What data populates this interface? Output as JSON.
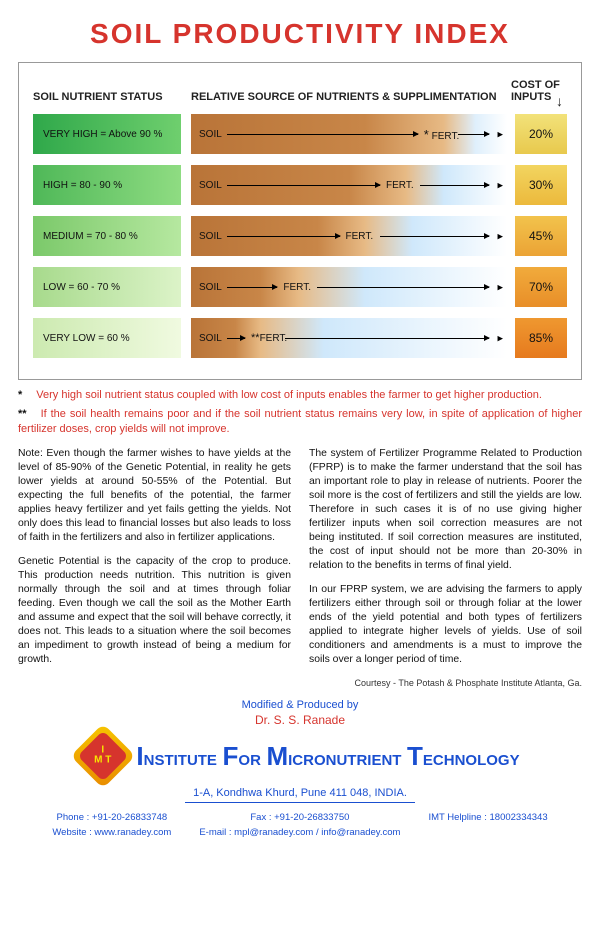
{
  "title": "SOIL PRODUCTIVITY INDEX",
  "headers": {
    "status": "SOIL NUTRIENT STATUS",
    "source": "RELATIVE SOURCE OF NUTRIENTS & SUPPLIMENTATION",
    "cost": "COST OF INPUTS"
  },
  "rows": [
    {
      "status": "VERY HIGH = Above 90 %",
      "status_bg": "linear-gradient(90deg,#2fa84a 0%,#6fcf6e 100%)",
      "soil_pct": 84,
      "bar_grad": "linear-gradient(90deg,#b97438 0%,#c88648 55%,#e7ba85 80%,#dfeffc 90%,#ffffff 100%)",
      "cost": "20%",
      "cost_bg": "linear-gradient(180deg,#f2e27a 0%,#e8c94d 100%)",
      "fert_before_star": "*",
      "fert_after_star": ""
    },
    {
      "status": "HIGH = 80 - 90 %",
      "status_bg": "linear-gradient(90deg,#4fb858 0%,#8fdc82 100%)",
      "soil_pct": 70,
      "bar_grad": "linear-gradient(90deg,#b97438 0%,#c88648 50%,#e7ba85 68%,#cfe8fb 80%,#ffffff 100%)",
      "cost": "30%",
      "cost_bg": "linear-gradient(180deg,#f2d560 0%,#ecb93c 100%)",
      "fert_before_star": "",
      "fert_after_star": ""
    },
    {
      "status": "MEDIUM = 70 - 80 %",
      "status_bg": "linear-gradient(90deg,#7bc96a 0%,#b6e8a0 100%)",
      "soil_pct": 55,
      "bar_grad": "linear-gradient(90deg,#b97438 0%,#c88648 40%,#e7ba85 55%,#cfe8fb 70%,#ffffff 100%)",
      "cost": "45%",
      "cost_bg": "linear-gradient(180deg,#f2c34c 0%,#eba335 100%)",
      "fert_before_star": "",
      "fert_after_star": ""
    },
    {
      "status": "LOW = 60 - 70 %",
      "status_bg": "linear-gradient(90deg,#a7da8c 0%,#dcf3c8 100%)",
      "soil_pct": 32,
      "bar_grad": "linear-gradient(90deg,#b97438 0%,#c88648 22%,#e7ba85 34%,#cfe8fb 55%,#ffffff 100%)",
      "cost": "70%",
      "cost_bg": "linear-gradient(180deg,#f1ab3c 0%,#e88e28 100%)",
      "fert_before_star": "",
      "fert_after_star": ""
    },
    {
      "status": "VERY LOW = 60 %",
      "status_bg": "linear-gradient(90deg,#cceab0 0%,#f0fae0 100%)",
      "soil_pct": 20,
      "bar_grad": "linear-gradient(90deg,#b97438 0%,#c88648 14%,#e7ba85 22%,#cfe8fb 42%,#ffffff 100%)",
      "cost": "85%",
      "cost_bg": "linear-gradient(180deg,#ef9830 0%,#e67a1e 100%)",
      "fert_before_star": "",
      "fert_after_star": "**"
    }
  ],
  "labels": {
    "soil": "SOIL",
    "fert": "FERT."
  },
  "footnotes": {
    "f1": "Very high soil nutrient status coupled with low cost of inputs enables the farmer to get higher production.",
    "f2": "If the soil health remains poor and if the soil nutrient status remains very low, in spite of application of higher fertilizer doses, crop yields will not improve."
  },
  "body": {
    "p1": "Note: Even though the farmer wishes to have yields at the level of 85-90% of the Genetic Potential, in reality he gets lower yields at around 50-55% of the Potential. But expecting the full benefits of the potential, the farmer applies heavy fertilizer and yet fails getting the yields. Not only does this lead to financial losses but also leads to loss of faith in the fertilizers and also in fertilizer applications.",
    "p2": "Genetic Potential is the capacity of the crop to produce. This production needs nutrition. This nutrition is given normally through the soil and at times through foliar feeding. Even though we call the soil as the Mother Earth and assume and expect that the soil will behave correctly, it does not. This leads to a situation where the soil becomes an impediment to growth instead of being a medium for growth.",
    "p3": "The system of Fertilizer Programme Related to Production (FPRP) is to make the farmer understand that the soil has an important role to play in release of nutrients. Poorer the soil more is the cost of fertilizers and still the yields are low. Therefore in such cases it is of no use giving higher fertilizer inputs when soil correction measures are not being instituted. If soil correction measures are instituted, the cost of input should not be more than 20-30% in relation to the benefits in terms of final yield.",
    "p4": "In our FPRP system, we are advising the farmers to apply fertilizers either through soil or through foliar at the lower ends of the yield potential and both types of fertilizers applied to integrate higher levels of yields. Use of soil conditioners and amendments is a must to improve the soils over a longer period of time."
  },
  "courtesy": "Courtesy - The Potash & Phosphate Institute Atlanta, Ga.",
  "credits": {
    "modified": "Modified & Produced by",
    "dr": "Dr. S. S. Ranade",
    "inst": "INSTITUTE FOR MICRONUTRIENT TECHNOLOGY",
    "addr": "1-A, Kondhwa Khurd, Pune 411 048, INDIA."
  },
  "contacts": {
    "phone_l": "Phone : +91-20-26833748",
    "web_l": "Website : www.ranadey.com",
    "fax": "Fax : +91-20-26833750",
    "email": "E-mail : mpl@ranadey.com / info@ranadey.com",
    "help": "IMT Helpline : 18002334343"
  }
}
